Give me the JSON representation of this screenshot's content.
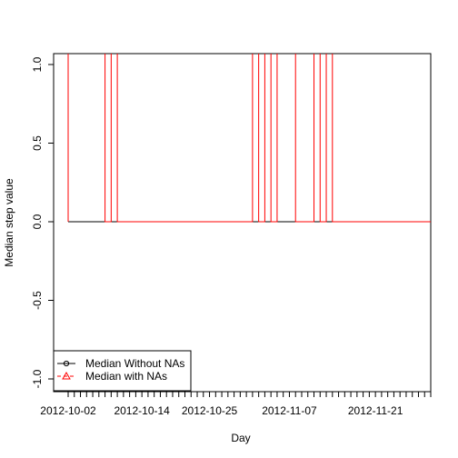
{
  "chart_data": {
    "type": "line",
    "xlabel": "Day",
    "ylabel": "Median step value",
    "ylim": [
      -1.0,
      1.0
    ],
    "x_tick_labels": [
      "2012-10-02",
      "2012-10-14",
      "2012-10-25",
      "2012-11-07",
      "2012-11-21"
    ],
    "x_tick_dates": [
      "2012-10-02",
      "2012-10-14",
      "2012-10-25",
      "2012-11-07",
      "2012-11-21"
    ],
    "x_minor_ticks": "daily",
    "x_range_dates": [
      "2012-10-02",
      "2012-11-30"
    ],
    "y_ticks": [
      -1.0,
      -0.5,
      0.0,
      0.5,
      1.0
    ],
    "y_tick_labels": [
      "-1.0",
      "-0.5",
      "0.0",
      "0.5",
      "1.0"
    ],
    "grid": false,
    "legend_position": "bottom-left",
    "series": [
      {
        "name": "Median Without NAs",
        "color": "#000000",
        "marker": "circle",
        "line": "solid",
        "x": [
          "2012-10-02",
          "2012-10-03",
          "2012-10-04",
          "2012-10-05",
          "2012-10-06",
          "2012-10-07",
          "2012-10-08",
          "2012-10-09",
          "2012-10-10",
          "2012-10-11",
          "2012-10-12",
          "2012-10-13",
          "2012-10-14",
          "2012-10-15",
          "2012-10-16",
          "2012-10-17",
          "2012-10-18",
          "2012-10-19",
          "2012-10-20",
          "2012-10-21",
          "2012-10-22",
          "2012-10-23",
          "2012-10-24",
          "2012-10-25",
          "2012-10-26",
          "2012-10-27",
          "2012-10-28",
          "2012-10-29",
          "2012-10-30",
          "2012-10-31",
          "2012-11-01",
          "2012-11-02",
          "2012-11-03",
          "2012-11-04",
          "2012-11-05",
          "2012-11-06",
          "2012-11-07",
          "2012-11-08",
          "2012-11-09",
          "2012-11-10",
          "2012-11-11",
          "2012-11-12",
          "2012-11-13",
          "2012-11-14",
          "2012-11-15",
          "2012-11-16",
          "2012-11-17",
          "2012-11-18",
          "2012-11-19",
          "2012-11-20",
          "2012-11-21",
          "2012-11-22",
          "2012-11-23",
          "2012-11-24",
          "2012-11-25",
          "2012-11-26",
          "2012-11-27",
          "2012-11-28",
          "2012-11-29"
        ],
        "values": [
          0,
          0,
          0,
          0,
          0,
          0,
          0,
          0,
          0,
          0,
          0,
          0,
          0,
          0,
          0,
          0,
          0,
          0,
          0,
          0,
          0,
          0,
          0,
          0,
          0,
          0,
          0,
          0,
          0,
          0,
          0,
          0,
          0,
          0,
          0,
          0,
          0,
          0,
          0,
          0,
          0,
          0,
          0,
          0,
          0,
          0,
          0,
          0,
          0,
          0,
          0,
          0,
          0,
          0,
          0,
          0,
          0,
          0,
          0
        ]
      },
      {
        "name": "Median with NAs",
        "color": "#ff0000",
        "marker": "triangle",
        "line": "dashed",
        "step_points": [
          [
            "2012-10-02",
            0
          ],
          [
            "2012-10-02",
            1
          ],
          [
            "2012-10-08",
            1
          ],
          [
            "2012-10-08",
            0
          ],
          [
            "2012-10-09",
            0
          ],
          [
            "2012-10-09",
            1
          ],
          [
            "2012-10-10",
            1
          ],
          [
            "2012-10-10",
            0
          ],
          [
            "2012-11-01",
            0
          ],
          [
            "2012-11-01",
            1
          ],
          [
            "2012-11-02",
            1
          ],
          [
            "2012-11-02",
            0
          ],
          [
            "2012-11-03",
            0
          ],
          [
            "2012-11-03",
            1
          ],
          [
            "2012-11-04",
            1
          ],
          [
            "2012-11-04",
            0
          ],
          [
            "2012-11-05",
            0
          ],
          [
            "2012-11-05",
            1
          ],
          [
            "2012-11-08",
            1
          ],
          [
            "2012-11-08",
            0
          ],
          [
            "2012-11-11",
            0
          ],
          [
            "2012-11-11",
            1
          ],
          [
            "2012-11-12",
            1
          ],
          [
            "2012-11-12",
            0
          ],
          [
            "2012-11-13",
            0
          ],
          [
            "2012-11-13",
            1
          ],
          [
            "2012-11-14",
            1
          ],
          [
            "2012-11-14",
            0
          ],
          [
            "2012-11-30",
            0
          ]
        ]
      }
    ]
  }
}
